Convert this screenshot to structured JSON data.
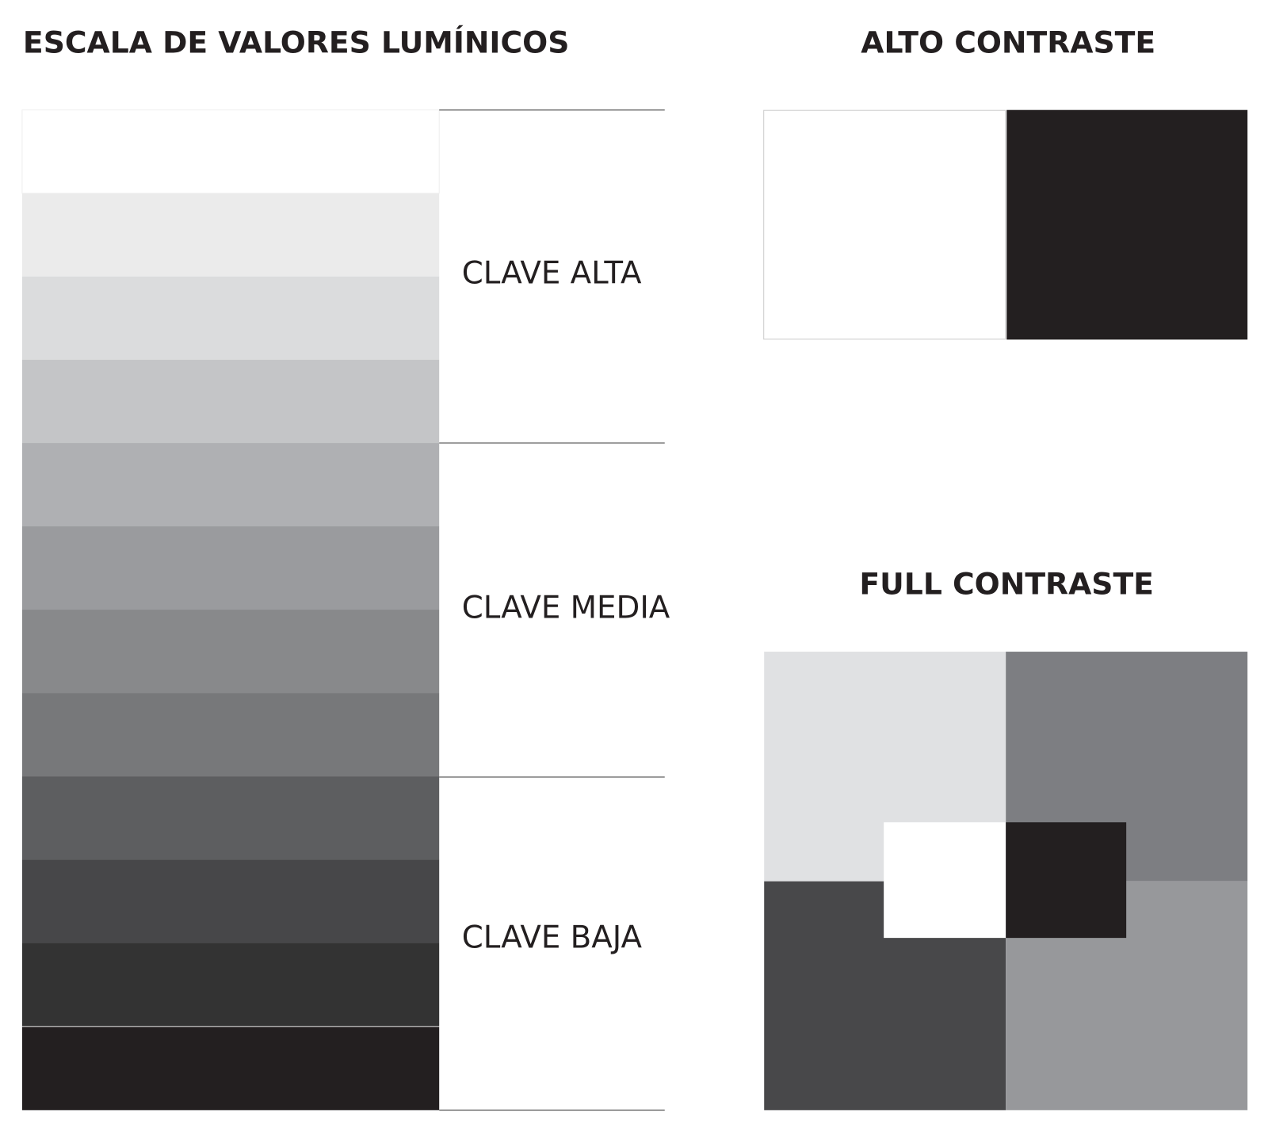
{
  "scale": {
    "title": "ESCALA DE VALORES LUMÍNICOS",
    "labels": [
      "CLAVE ALTA",
      "CLAVE MEDIA",
      "CLAVE BAJA"
    ]
  },
  "high_contrast": {
    "title": "ALTO CONTRASTE"
  },
  "full_contrast": {
    "title": "FULL CONTRASTE"
  }
}
